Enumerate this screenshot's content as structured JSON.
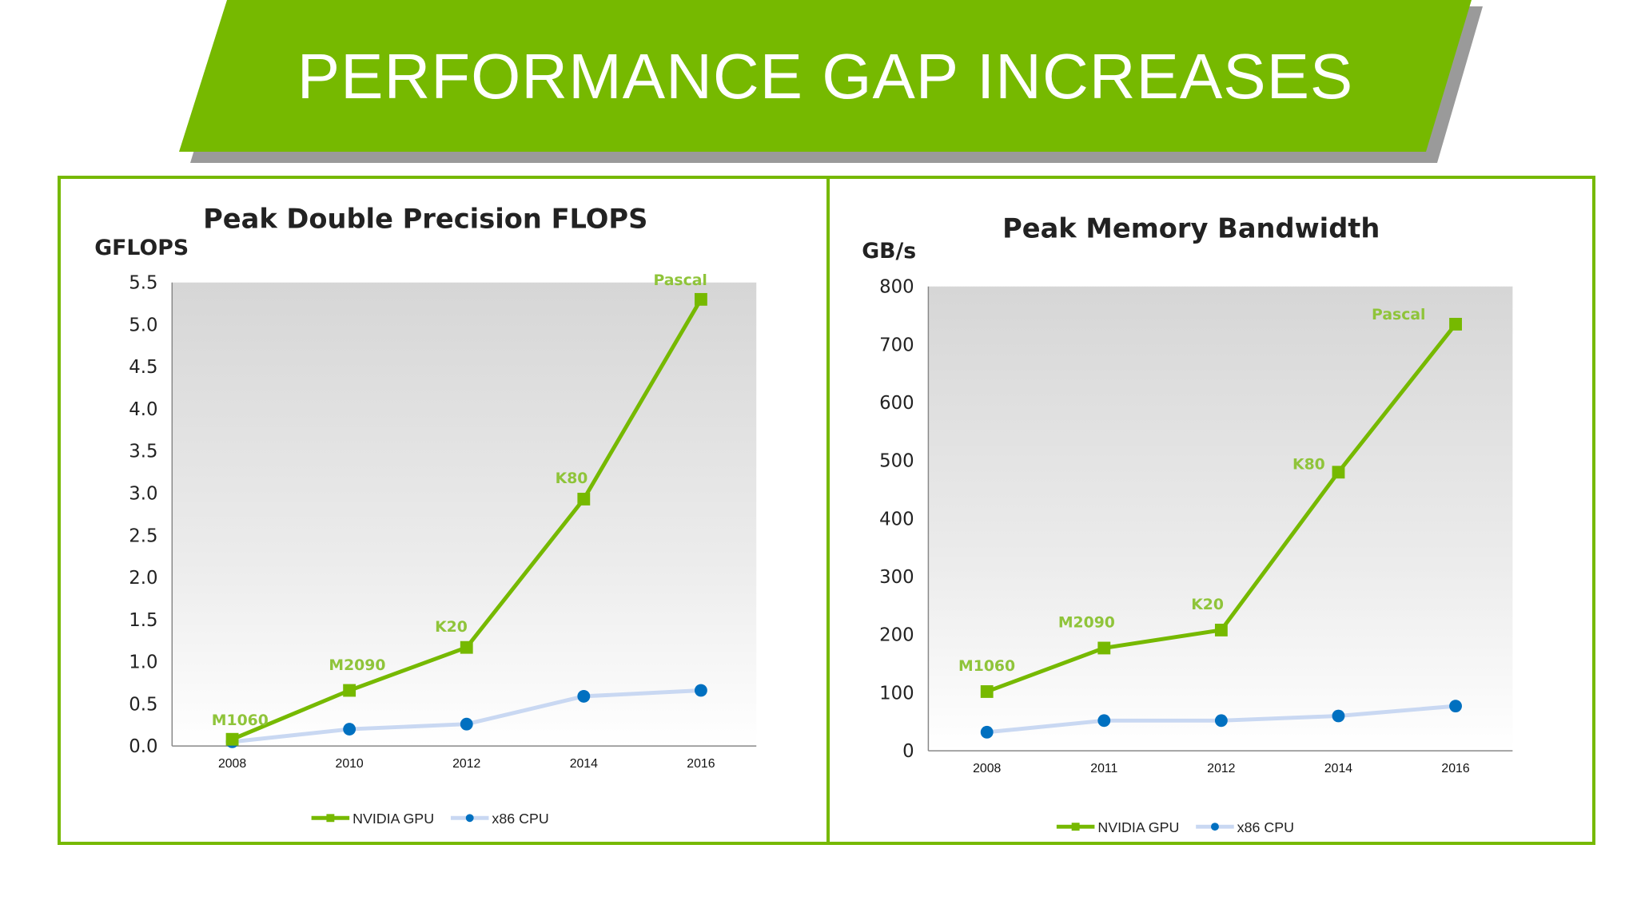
{
  "slide": {
    "title": "PERFORMANCE GAP INCREASES"
  },
  "colors": {
    "banner": "#76b900",
    "gpu": "#76b900",
    "cpu_line": "#c9d8f2",
    "cpu_marker": "#0070c0",
    "label": "#8fc43a"
  },
  "chart_data": [
    {
      "type": "line",
      "title": "Peak Double Precision FLOPS",
      "ylabel": "GFLOPS",
      "xlabel": "",
      "categories": [
        "2008",
        "2010",
        "2012",
        "2014",
        "2016"
      ],
      "ylim": [
        0,
        5.5
      ],
      "yticks": [
        "0.0",
        "0.5",
        "1.0",
        "1.5",
        "2.0",
        "2.5",
        "3.0",
        "3.5",
        "4.0",
        "4.5",
        "5.0",
        "5.5"
      ],
      "grid": false,
      "legend": "bottom",
      "series": [
        {
          "name": "NVIDIA GPU",
          "marker": "square",
          "values": [
            0.08,
            0.66,
            1.17,
            2.93,
            5.3
          ],
          "labels": [
            "M1060",
            "M2090",
            "K20",
            "K80",
            "Pascal"
          ]
        },
        {
          "name": "x86 CPU",
          "marker": "circle",
          "values": [
            0.05,
            0.2,
            0.26,
            0.59,
            0.66
          ]
        }
      ]
    },
    {
      "type": "line",
      "title": "Peak Memory Bandwidth",
      "ylabel": "GB/s",
      "xlabel": "",
      "categories": [
        "2008",
        "2011",
        "2012",
        "2014",
        "2016"
      ],
      "ylim": [
        0,
        800
      ],
      "yticks": [
        "0",
        "100",
        "200",
        "300",
        "400",
        "500",
        "600",
        "700",
        "800"
      ],
      "grid": false,
      "legend": "bottom",
      "series": [
        {
          "name": "NVIDIA GPU",
          "marker": "square",
          "values": [
            102,
            177,
            208,
            480,
            735
          ],
          "labels": [
            "M1060",
            "M2090",
            "K20",
            "K80",
            "Pascal"
          ]
        },
        {
          "name": "x86 CPU",
          "marker": "circle",
          "values": [
            32,
            52,
            52,
            60,
            77
          ]
        }
      ]
    }
  ]
}
